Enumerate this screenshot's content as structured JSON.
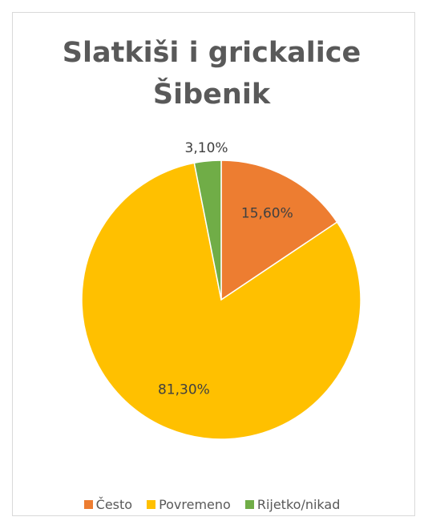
{
  "chart_data": {
    "type": "pie",
    "title": "Slatkiši i grickalice Šibenik",
    "categories": [
      "Često",
      "Povremeno",
      "Rijetko/nikad"
    ],
    "values": [
      15.6,
      81.3,
      3.1
    ],
    "value_labels": [
      "15,60%",
      "81,30%",
      "3,10%"
    ],
    "colors": [
      "#ED7D31",
      "#FFC000",
      "#70AD47"
    ],
    "legend": "bottom"
  }
}
